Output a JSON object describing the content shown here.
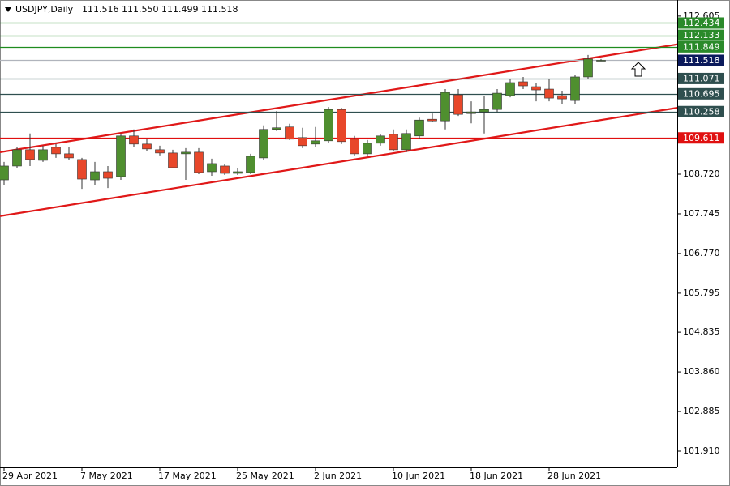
{
  "chart_data": {
    "type": "candlestick",
    "title": "USDJPY,Daily",
    "subtitle": "111.516 111.550 111.499 111.518",
    "categories": [
      "29 Apr 2021",
      null,
      null,
      null,
      null,
      null,
      "7 May 2021",
      null,
      null,
      null,
      null,
      null,
      "17 May 2021",
      null,
      null,
      null,
      null,
      null,
      "25 May 2021",
      null,
      null,
      null,
      null,
      null,
      "2 Jun 2021",
      null,
      null,
      null,
      null,
      null,
      "10 Jun 2021",
      null,
      null,
      null,
      null,
      null,
      "18 Jun 2021",
      null,
      null,
      null,
      null,
      null,
      "28 Jun 2021",
      null,
      null,
      null,
      null
    ],
    "open": [
      108.58,
      108.92,
      109.32,
      109.06,
      109.38,
      109.22,
      109.08,
      108.58,
      108.78,
      108.66,
      109.66,
      109.46,
      109.32,
      109.24,
      109.22,
      109.26,
      108.78,
      108.92,
      108.74,
      108.76,
      109.12,
      109.82,
      109.88,
      109.62,
      109.46,
      109.54,
      110.31,
      109.58,
      109.22,
      109.48,
      109.7,
      109.32,
      109.66,
      110.07,
      110.03,
      110.67,
      110.21,
      110.25,
      110.31,
      110.65,
      110.99,
      110.87,
      110.81,
      110.65,
      110.53,
      111.11,
      111.516
    ],
    "high": [
      109.02,
      109.38,
      109.72,
      109.42,
      109.46,
      109.38,
      109.12,
      109.02,
      108.92,
      109.72,
      109.82,
      109.58,
      109.42,
      109.32,
      109.36,
      109.36,
      109.1,
      108.96,
      108.86,
      109.22,
      109.92,
      110.27,
      109.96,
      109.86,
      109.88,
      110.37,
      110.35,
      109.66,
      109.56,
      109.7,
      109.82,
      109.82,
      110.11,
      110.21,
      110.81,
      110.81,
      110.51,
      110.65,
      110.81,
      111.05,
      111.11,
      110.97,
      111.05,
      110.77,
      111.17,
      111.65,
      111.55
    ],
    "low": [
      108.46,
      108.88,
      108.92,
      109.02,
      109.12,
      109.06,
      108.36,
      108.46,
      108.38,
      108.58,
      109.38,
      109.28,
      109.18,
      108.86,
      108.58,
      108.72,
      108.68,
      108.7,
      108.7,
      108.72,
      109.06,
      109.78,
      109.56,
      109.36,
      109.38,
      109.48,
      109.46,
      109.18,
      109.18,
      109.42,
      109.28,
      109.26,
      109.58,
      110.01,
      109.82,
      110.15,
      109.97,
      109.72,
      110.25,
      110.61,
      110.81,
      110.51,
      110.51,
      110.45,
      110.45,
      111.07,
      111.499
    ],
    "close": [
      108.92,
      109.32,
      109.08,
      109.32,
      109.22,
      109.12,
      108.6,
      108.78,
      108.62,
      109.66,
      109.46,
      109.34,
      109.24,
      108.88,
      109.26,
      108.76,
      108.98,
      108.74,
      108.78,
      109.16,
      109.82,
      109.86,
      109.58,
      109.42,
      109.54,
      110.31,
      109.52,
      109.22,
      109.48,
      109.66,
      109.32,
      109.72,
      110.05,
      110.03,
      110.73,
      110.19,
      110.25,
      110.31,
      110.71,
      110.97,
      110.89,
      110.79,
      110.59,
      110.57,
      111.11,
      111.55,
      111.518
    ],
    "up_color": "#4f8f2f",
    "down_color": "#e8472a",
    "ylim": [
      101.512,
      113.001
    ],
    "yticks": [
      112.605,
      {
        "value": 108.72,
        "label": "108.720"
      },
      107.745,
      {
        "value": 106.77,
        "label": "106.770"
      },
      105.795,
      104.835,
      {
        "value": 103.86,
        "label": "103.860"
      },
      102.885,
      {
        "value": 101.91,
        "label": "101.910"
      }
    ],
    "levels": [
      {
        "value": 112.434,
        "color": "#1e8c1e",
        "label_color": "#2a8a2a"
      },
      {
        "value": 112.133,
        "color": "#1e8c1e",
        "label_color": "#2a8a2a"
      },
      {
        "value": 111.849,
        "color": "#1e8c1e",
        "label_color": "#2a8a2a"
      },
      {
        "value": 111.518,
        "color": "#b0b4bc",
        "label_color": "#0b1a5c"
      },
      {
        "value": 111.071,
        "color": "#2f4f4f",
        "label_color": "#2f4f4f"
      },
      {
        "value": 110.695,
        "color": "#2f4f4f",
        "label_color": "#2f4f4f"
      },
      {
        "value": 110.258,
        "color": "#2f4f4f",
        "label_color": "#2f4f4f"
      },
      {
        "value": 109.611,
        "color": "#e01010",
        "label_color": "#e01010"
      }
    ],
    "trendlines": [
      {
        "color": "#e01818",
        "values": [
          109.26,
          111.91
        ]
      },
      {
        "color": "#e01818",
        "values": [
          107.69,
          110.35
        ]
      }
    ]
  }
}
